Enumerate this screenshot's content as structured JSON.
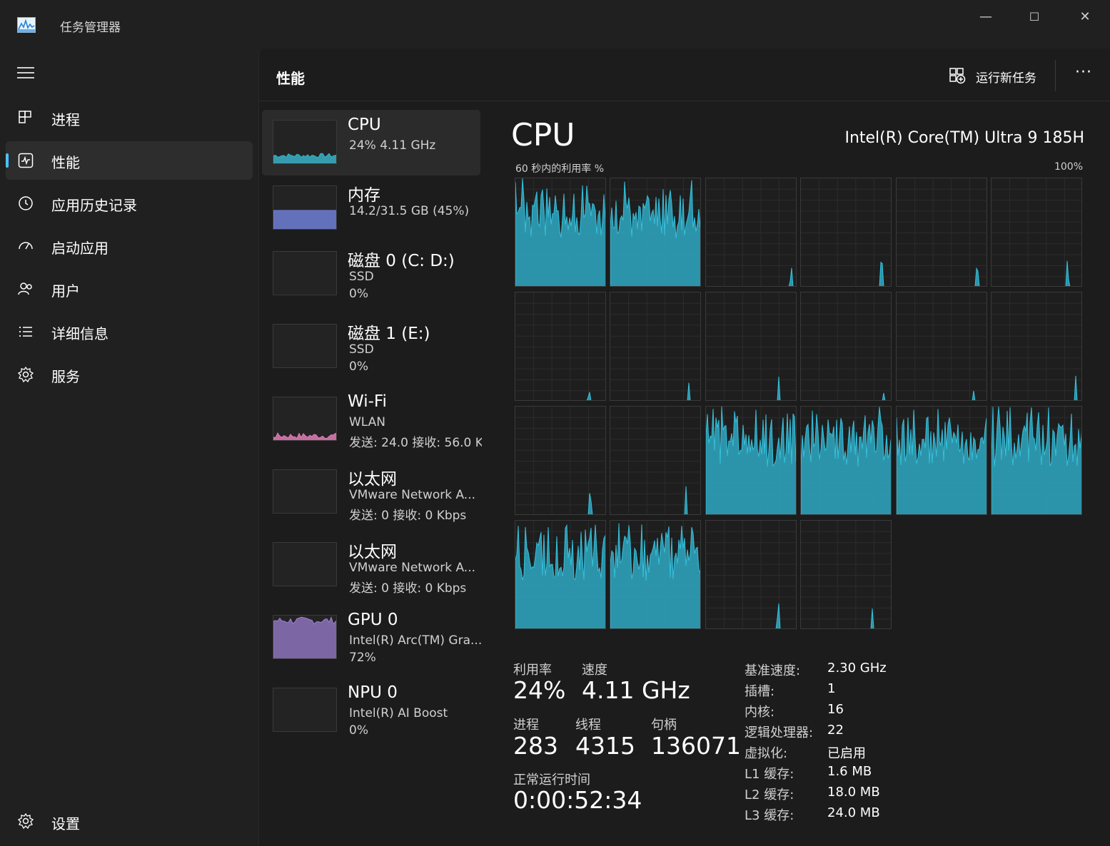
{
  "app": {
    "title": "任务管理器"
  },
  "window_controls": {
    "minimize": "—",
    "maximize": "☐",
    "close": "✕"
  },
  "sidebar": {
    "items": [
      {
        "label": "进程",
        "icon": "processes-icon"
      },
      {
        "label": "性能",
        "icon": "performance-icon",
        "active": true
      },
      {
        "label": "应用历史记录",
        "icon": "history-icon"
      },
      {
        "label": "启动应用",
        "icon": "startup-icon"
      },
      {
        "label": "用户",
        "icon": "users-icon"
      },
      {
        "label": "详细信息",
        "icon": "details-icon"
      },
      {
        "label": "服务",
        "icon": "services-icon"
      }
    ],
    "settings_label": "设置"
  },
  "header": {
    "title": "性能",
    "run_task_label": "运行新任务",
    "more": "···"
  },
  "resources": [
    {
      "name": "CPU",
      "sub1": "24%  4.11 GHz",
      "sub2": "",
      "color": "#3ab0c8",
      "active": true
    },
    {
      "name": "内存",
      "sub1": "14.2/31.5 GB (45%)",
      "sub2": "",
      "color": "#6f7fd6"
    },
    {
      "name": "磁盘 0 (C: D:)",
      "sub1": "SSD",
      "sub2": "0%",
      "color": "#5fbf6f"
    },
    {
      "name": "磁盘 1 (E:)",
      "sub1": "SSD",
      "sub2": "0%",
      "color": "#5fbf6f"
    },
    {
      "name": "Wi-Fi",
      "sub1": "WLAN",
      "sub2": "发送: 24.0  接收: 56.0 K",
      "color": "#e07bb8"
    },
    {
      "name": "以太网",
      "sub1": "VMware Network A...",
      "sub2": "发送: 0  接收: 0 Kbps",
      "color": "#e07bb8"
    },
    {
      "name": "以太网",
      "sub1": "VMware Network A...",
      "sub2": "发送: 0  接收: 0 Kbps",
      "color": "#e07bb8"
    },
    {
      "name": "GPU 0",
      "sub1": "Intel(R) Arc(TM) Gra...",
      "sub2": "72%",
      "color": "#9b7fd0"
    },
    {
      "name": "NPU 0",
      "sub1": "Intel(R) AI Boost",
      "sub2": "0%",
      "color": "#3ab0c8"
    }
  ],
  "cpu": {
    "title": "CPU",
    "model": "Intel(R) Core(TM) Ultra 9 185H",
    "util_label": "60 秒内的利用率 %",
    "util_max": "100%",
    "core_load_levels": [
      "high",
      "high",
      "idle",
      "idle",
      "idle",
      "idle",
      "idle",
      "idle",
      "idle",
      "idle",
      "idle",
      "idle",
      "idle",
      "idle",
      "high",
      "high",
      "high",
      "high",
      "high",
      "high",
      "idle",
      "idle"
    ]
  },
  "stats": {
    "utilization_label": "利用率",
    "utilization_value": "24%",
    "speed_label": "速度",
    "speed_value": "4.11 GHz",
    "processes_label": "进程",
    "processes_value": "283",
    "threads_label": "线程",
    "threads_value": "4315",
    "handles_label": "句柄",
    "handles_value": "136071",
    "uptime_label": "正常运行时间",
    "uptime_value": "0:00:52:34"
  },
  "specs": [
    {
      "key": "基准速度:",
      "value": "2.30 GHz"
    },
    {
      "key": "插槽:",
      "value": "1"
    },
    {
      "key": "内核:",
      "value": "16"
    },
    {
      "key": "逻辑处理器:",
      "value": "22"
    },
    {
      "key": "虚拟化:",
      "value": "已启用"
    },
    {
      "key": "L1 缓存:",
      "value": "1.6 MB"
    },
    {
      "key": "L2 缓存:",
      "value": "18.0 MB"
    },
    {
      "key": "L3 缓存:",
      "value": "24.0 MB"
    }
  ]
}
